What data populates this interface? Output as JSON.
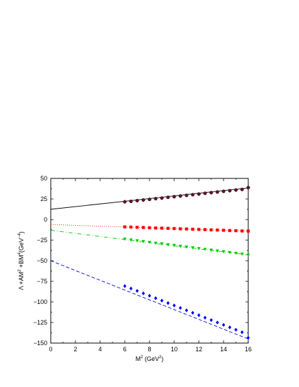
{
  "chart_data": {
    "type": "line",
    "xlabel": "M² (GeV²)",
    "xlabel_parts": {
      "base": "M",
      "sup": "2",
      "unit_open": " (GeV",
      "unit_sup": "2",
      "unit_close": ")"
    },
    "ylabel": "Λ +AM² +BM⁴(GeV⁻⁴)",
    "ylabel_parts": {
      "p1": "Λ +AM",
      "s1": "2",
      "p2": " +BM",
      "s2": "4",
      "p3": "(GeV",
      "s3": "−4",
      "p4": ")"
    },
    "xlim": [
      0,
      16
    ],
    "ylim": [
      -150,
      50
    ],
    "x_ticks": [
      0,
      2,
      4,
      6,
      8,
      10,
      12,
      14,
      16
    ],
    "y_ticks": [
      50,
      25,
      0,
      -25,
      -50,
      -75,
      -100,
      -125,
      -150
    ],
    "x_tick_labels": [
      "0",
      "2",
      "4",
      "6",
      "8",
      "10",
      "12",
      "14",
      "16"
    ],
    "y_tick_labels": [
      "50",
      "25",
      "0",
      "−25",
      "−50",
      "−75",
      "−100",
      "−125",
      "−150"
    ],
    "grid": false,
    "series": [
      {
        "style": "solid",
        "color": "#000000",
        "marker": "circle",
        "marker_fill": "#6b1030",
        "line": {
          "x": [
            0,
            16
          ],
          "y": [
            12.5,
            38.5
          ]
        },
        "points": {
          "x": [
            6,
            6.5,
            7,
            7.5,
            8,
            8.5,
            9,
            9.5,
            10,
            10.5,
            11,
            11.5,
            12,
            12.5,
            13,
            13.5,
            14,
            14.5,
            15,
            15.5,
            16
          ],
          "y": [
            21.6,
            22.1,
            23.0,
            23.8,
            24.5,
            25.4,
            26.1,
            27.0,
            27.8,
            28.6,
            29.4,
            30.2,
            31.0,
            31.9,
            32.7,
            33.5,
            34.3,
            35.1,
            35.9,
            36.6,
            38.8
          ]
        }
      },
      {
        "style": "dotted",
        "color": "#ff0000",
        "marker": "square",
        "marker_fill": "#ff0000",
        "line": {
          "x": [
            0,
            16
          ],
          "y": [
            -6.0,
            -14.0
          ]
        },
        "points": {
          "x": [
            6,
            6.5,
            7,
            7.5,
            8,
            8.5,
            9,
            9.5,
            10,
            10.5,
            11,
            11.5,
            12,
            12.5,
            13,
            13.5,
            14,
            14.5,
            15,
            15.5,
            16
          ],
          "y": [
            -8.9,
            -9.1,
            -9.4,
            -9.6,
            -9.9,
            -10.2,
            -10.4,
            -10.7,
            -10.9,
            -11.2,
            -11.4,
            -11.7,
            -12.0,
            -12.2,
            -12.5,
            -12.7,
            -13.0,
            -13.3,
            -13.5,
            -13.8,
            -14.0
          ]
        }
      },
      {
        "style": "dashdot",
        "color": "#00cc00",
        "marker": "triangle-down",
        "marker_fill": "#00cc00",
        "line": {
          "x": [
            0,
            16
          ],
          "y": [
            -13.0,
            -43.0
          ]
        },
        "points": {
          "x": [
            6,
            6.5,
            7,
            7.5,
            8,
            8.5,
            9,
            9.5,
            10,
            10.5,
            11,
            11.5,
            12,
            12.5,
            13,
            13.5,
            14,
            14.5,
            15,
            15.5,
            16
          ],
          "y": [
            -23.6,
            -24.6,
            -25.6,
            -26.6,
            -27.5,
            -28.5,
            -29.4,
            -30.4,
            -31.3,
            -32.3,
            -33.2,
            -34.2,
            -35.1,
            -36.1,
            -37.0,
            -38.0,
            -38.9,
            -39.9,
            -40.8,
            -41.8,
            -43.0
          ]
        }
      },
      {
        "style": "dashed",
        "color": "#0000ff",
        "marker": "diamond",
        "marker_fill": "#0000ff",
        "line": {
          "x": [
            0,
            16
          ],
          "y": [
            -50.0,
            -145.0
          ]
        },
        "points": {
          "x": [
            6,
            6.5,
            7,
            7.5,
            8,
            8.5,
            9,
            9.5,
            10,
            10.5,
            11,
            11.5,
            12,
            12.5,
            13,
            13.5,
            14,
            14.5,
            15,
            15.5,
            16
          ],
          "y": [
            -80.8,
            -83.7,
            -86.6,
            -89.6,
            -92.5,
            -95.5,
            -98.4,
            -101.4,
            -104.3,
            -107.3,
            -110.2,
            -113.2,
            -116.1,
            -119.1,
            -122.0,
            -125.0,
            -127.9,
            -130.9,
            -133.8,
            -136.8,
            -143.5
          ]
        }
      }
    ]
  }
}
